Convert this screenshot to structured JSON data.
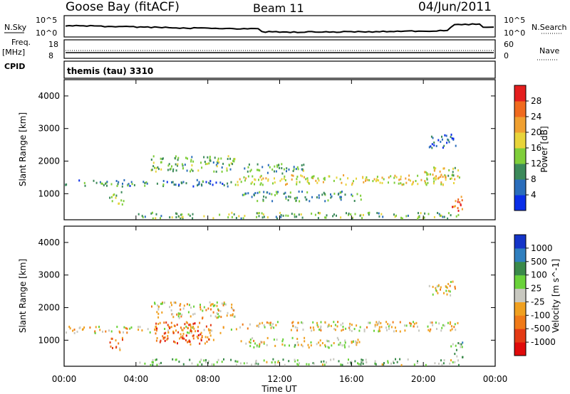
{
  "header": {
    "station": "Goose Bay (fitACF)",
    "beam": "Beam 11",
    "date": "04/Jun/2011"
  },
  "panels": {
    "nsky_label": "N.Sky",
    "nsky_ticks": [
      "10^5",
      "10^0"
    ],
    "nsearch_label": "N.Search",
    "nsearch_ticks": [
      "10^5",
      "10^0"
    ],
    "freq_label": "Freq.",
    "freq_unit": "[MHz]",
    "freq_ticks": [
      "18",
      "8"
    ],
    "nave_label": "Nave",
    "nave_ticks": [
      "60",
      "0"
    ],
    "cpid_label": "CPID",
    "cpid_text": "themis (tau) 3310"
  },
  "chart_data": [
    {
      "type": "heatmap",
      "name": "power",
      "ylabel": "Slant Range [km]",
      "yticks": [
        "1000",
        "2000",
        "3000",
        "4000"
      ],
      "ylim": [
        200,
        4500
      ],
      "xlim": [
        0,
        24
      ],
      "colorbar_label": "Power [dB]",
      "colorbar_ticks": [
        "4",
        "8",
        "12",
        "16",
        "20",
        "24",
        "28"
      ],
      "colorbar_colors": [
        "#0a2ee8",
        "#2a6dbb",
        "#3c8a5a",
        "#7fce3a",
        "#e8d43a",
        "#f0a030",
        "#f06a1e",
        "#e41e1e"
      ],
      "bands": [
        {
          "t": [
            0.0,
            9.3
          ],
          "r": [
            1250,
            1450
          ],
          "level": 0.25
        },
        {
          "t": [
            4.8,
            9.5
          ],
          "r": [
            1700,
            2200
          ],
          "level": 0.4
        },
        {
          "t": [
            9.5,
            22.0
          ],
          "r": [
            1300,
            1600
          ],
          "level": 0.55
        },
        {
          "t": [
            10.0,
            13.5
          ],
          "r": [
            1650,
            1950
          ],
          "level": 0.35
        },
        {
          "t": [
            20.0,
            22.0
          ],
          "r": [
            1450,
            1850
          ],
          "level": 0.5
        },
        {
          "t": [
            2.5,
            3.3
          ],
          "r": [
            700,
            1100
          ],
          "level": 0.45
        },
        {
          "t": [
            9.8,
            16.5
          ],
          "r": [
            800,
            1100
          ],
          "level": 0.3
        },
        {
          "t": [
            4.0,
            22.0
          ],
          "r": [
            250,
            450
          ],
          "level": 0.4
        },
        {
          "t": [
            20.3,
            21.8
          ],
          "r": [
            2400,
            2850
          ],
          "level": 0.2
        },
        {
          "t": [
            21.5,
            22.2
          ],
          "r": [
            500,
            1000
          ],
          "level": 0.85
        }
      ]
    },
    {
      "type": "heatmap",
      "name": "velocity",
      "ylabel": "Slant Range [km]",
      "yticks": [
        "1000",
        "2000",
        "3000",
        "4000"
      ],
      "ylim": [
        200,
        4500
      ],
      "xlim": [
        0,
        24
      ],
      "xticks": [
        "00:00",
        "04:00",
        "08:00",
        "12:00",
        "16:00",
        "20:00",
        "00:00"
      ],
      "xlabel": "Time UT",
      "colorbar_label": "Velocity [m s^-1]",
      "colorbar_ticks": [
        "1000",
        "500",
        "100",
        "25",
        "-25",
        "-100",
        "-500",
        "-1000"
      ],
      "colorbar_colors": [
        "#1434c8",
        "#2f7fbf",
        "#3a8a4a",
        "#6ad23a",
        "#c8c8c0",
        "#f0a020",
        "#f07a18",
        "#e43a14",
        "#e00a0a"
      ],
      "bands": [
        {
          "t": [
            0.0,
            9.3
          ],
          "r": [
            1250,
            1450
          ],
          "level": 0.55
        },
        {
          "t": [
            4.8,
            9.5
          ],
          "r": [
            1700,
            2200
          ],
          "level": 0.55
        },
        {
          "t": [
            9.5,
            22.0
          ],
          "r": [
            1300,
            1600
          ],
          "level": 0.55
        },
        {
          "t": [
            5.0,
            8.3
          ],
          "r": [
            900,
            1600
          ],
          "level": 0.75
        },
        {
          "t": [
            2.5,
            3.3
          ],
          "r": [
            700,
            1100
          ],
          "level": 0.7
        },
        {
          "t": [
            9.8,
            16.5
          ],
          "r": [
            800,
            1100
          ],
          "level": 0.5
        },
        {
          "t": [
            4.0,
            22.0
          ],
          "r": [
            250,
            450
          ],
          "level": 0.4
        },
        {
          "t": [
            20.3,
            21.8
          ],
          "r": [
            2400,
            2850
          ],
          "level": 0.55
        },
        {
          "t": [
            21.5,
            22.2
          ],
          "r": [
            500,
            1000
          ],
          "level": 0.35
        }
      ]
    }
  ]
}
